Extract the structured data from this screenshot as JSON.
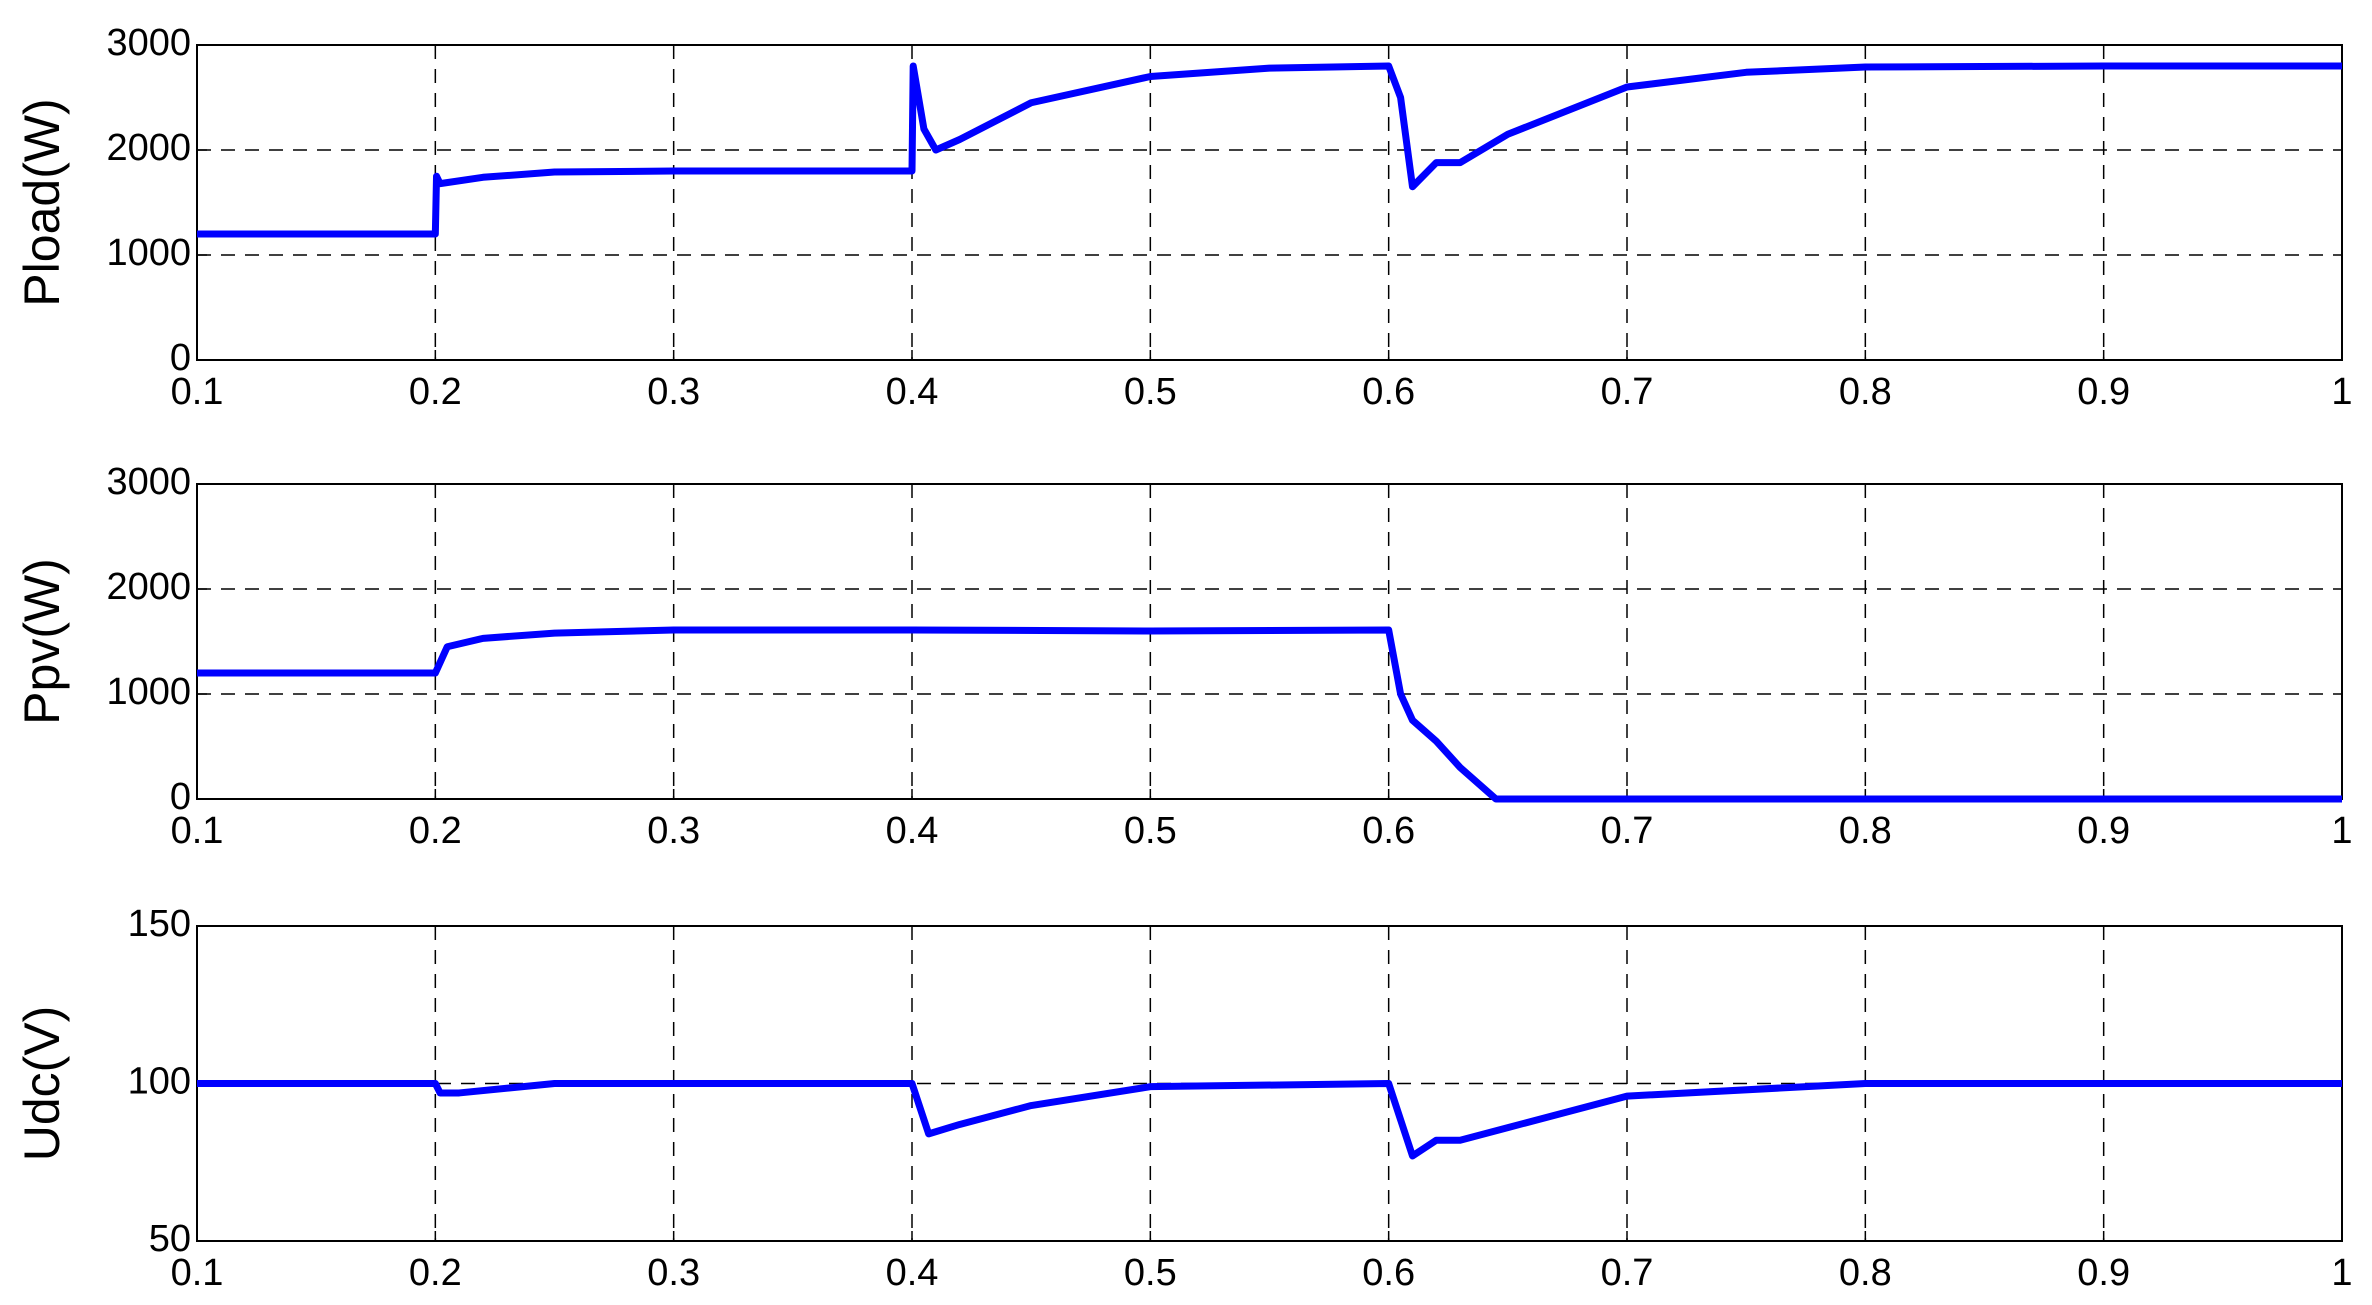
{
  "chart_data": [
    {
      "type": "line",
      "ylabel": "Pload(W)",
      "color": "#0000ff",
      "grid": true,
      "x": [
        0.1,
        0.2,
        0.2005,
        0.202,
        0.22,
        0.25,
        0.3,
        0.4,
        0.4005,
        0.405,
        0.41,
        0.42,
        0.45,
        0.5,
        0.55,
        0.6,
        0.605,
        0.61,
        0.62,
        0.63,
        0.65,
        0.7,
        0.75,
        0.8,
        0.9,
        1.0
      ],
      "values": [
        1200,
        1200,
        1750,
        1680,
        1740,
        1790,
        1800,
        1800,
        2800,
        2200,
        2000,
        2100,
        2450,
        2700,
        2780,
        2800,
        2500,
        1650,
        1880,
        1880,
        2150,
        2600,
        2740,
        2790,
        2800,
        2800
      ],
      "xlim": [
        0.1,
        1
      ],
      "xticks": [
        0.1,
        0.2,
        0.3,
        0.4,
        0.5,
        0.6,
        0.7,
        0.8,
        0.9,
        1
      ],
      "ylim": [
        0,
        3000
      ],
      "yticks": [
        0,
        1000,
        2000,
        3000
      ]
    },
    {
      "type": "line",
      "ylabel": "Ppv(W)",
      "color": "#0000ff",
      "grid": true,
      "x": [
        0.1,
        0.2,
        0.205,
        0.22,
        0.25,
        0.3,
        0.4,
        0.5,
        0.6,
        0.605,
        0.61,
        0.62,
        0.63,
        0.645,
        0.7,
        1.0
      ],
      "values": [
        1200,
        1200,
        1450,
        1530,
        1580,
        1610,
        1610,
        1600,
        1610,
        1000,
        750,
        550,
        300,
        0,
        0,
        0
      ],
      "xlim": [
        0.1,
        1
      ],
      "xticks": [
        0.1,
        0.2,
        0.3,
        0.4,
        0.5,
        0.6,
        0.7,
        0.8,
        0.9,
        1
      ],
      "ylim": [
        0,
        3000
      ],
      "yticks": [
        0,
        1000,
        2000,
        3000
      ]
    },
    {
      "type": "line",
      "ylabel": "Udc(V)",
      "color": "#0000ff",
      "grid": true,
      "x": [
        0.1,
        0.2,
        0.202,
        0.21,
        0.25,
        0.4,
        0.407,
        0.42,
        0.45,
        0.5,
        0.6,
        0.61,
        0.62,
        0.63,
        0.65,
        0.7,
        0.8,
        1.0
      ],
      "values": [
        100,
        100,
        97,
        97,
        100,
        100,
        84,
        87,
        93,
        99,
        100,
        77,
        82,
        82,
        86,
        96,
        100,
        100
      ],
      "xlim": [
        0.1,
        1
      ],
      "xticks": [
        0.1,
        0.2,
        0.3,
        0.4,
        0.5,
        0.6,
        0.7,
        0.8,
        0.9,
        1
      ],
      "ylim": [
        50,
        150
      ],
      "yticks": [
        50,
        100,
        150
      ]
    }
  ]
}
